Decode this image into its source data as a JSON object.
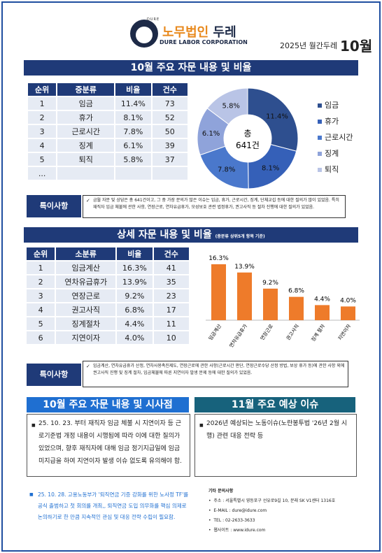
{
  "header": {
    "logo_small": "DURE",
    "logo_kr_1": "노무법인",
    "logo_kr_2": "두레",
    "logo_en": "DURE LABOR CORPORATION",
    "issue": "2025년 월간두레",
    "month": "10월"
  },
  "section1": {
    "title": "10월 주요 자문 내용 및 비율",
    "table": {
      "headers": [
        "순위",
        "중분류",
        "비율",
        "건수"
      ],
      "rows": [
        [
          "1",
          "임금",
          "11.4%",
          "73"
        ],
        [
          "2",
          "휴가",
          "8.1%",
          "52"
        ],
        [
          "3",
          "근로시간",
          "7.8%",
          "50"
        ],
        [
          "4",
          "징계",
          "6.1%",
          "39"
        ],
        [
          "5",
          "퇴직",
          "5.8%",
          "37"
        ],
        [
          "...",
          "",
          "",
          ""
        ]
      ]
    },
    "note_label": "특이사항",
    "note_text": "금월 자문 및 상담은 총 641건이고, 그 중 가장 문의가 많은 이슈는 임금, 휴가, 근로시간, 징계, 단체교섭 등에 대한 질의가 많이 있었음. 특히 재직자 임금 체불에 관한 사항, 연장근로, 연차유급휴가, 모성보호 관련 법정휴가, 권고사직 등 절차 진행에 대한 질의가 있었음."
  },
  "donut": {
    "center_line1": "총",
    "center_line2": "641건",
    "slices": [
      {
        "label": "임금",
        "value": 11.4,
        "text": "11.4%",
        "color": "#2e4f8f"
      },
      {
        "label": "휴가",
        "value": 8.1,
        "text": "8.1%",
        "color": "#3560b8"
      },
      {
        "label": "근로시간",
        "value": 7.8,
        "text": "7.8%",
        "color": "#4a78cc"
      },
      {
        "label": "징계",
        "value": 6.1,
        "text": "6.1%",
        "color": "#8fa3da"
      },
      {
        "label": "퇴직",
        "value": 5.8,
        "text": "5.8%",
        "color": "#b9c4e6"
      }
    ]
  },
  "section2": {
    "title": "상세 자문 내용 및 비율",
    "title_sub": "(중분류 상위5개 항목 기준)",
    "table": {
      "headers": [
        "순위",
        "소분류",
        "비율",
        "건수"
      ],
      "rows": [
        [
          "1",
          "임금계산",
          "16.3%",
          "41"
        ],
        [
          "2",
          "연차유급휴가",
          "13.9%",
          "35"
        ],
        [
          "3",
          "연장근로",
          "9.2%",
          "23"
        ],
        [
          "4",
          "권고사직",
          "6.8%",
          "17"
        ],
        [
          "5",
          "징계절차",
          "4.4%",
          "11"
        ],
        [
          "6",
          "지연이자",
          "4.0%",
          "10"
        ]
      ]
    },
    "note_label": "특이사항",
    "note_text": "임금계산, 연차유급휴가 산정, 연차사용촉진제도, 연장근로에 관한 사항(근로시간 판단, 연장근로수당 산정 방법, 보상 휴가 등)에 관한 사항 외에 권고사직 진행 및 징계 절차, 임금체불에 따른 지연이자 발생 문제 등에 대한 질의가 있었음."
  },
  "chart_data": {
    "type": "bar",
    "categories": [
      "임금계산",
      "연차유급휴가",
      "연장근로",
      "권고사직",
      "징계 절차",
      "지연이자"
    ],
    "values": [
      16.3,
      13.9,
      9.2,
      6.8,
      4.4,
      4.0
    ],
    "labels": [
      "16.3%",
      "13.9%",
      "9.2%",
      "6.8%",
      "4.4%",
      "4.0%"
    ],
    "color": "#ee7b2a",
    "ylim": [
      0,
      16.3
    ]
  },
  "section3": {
    "title": "10월 주요 자문 내용 및 시사점",
    "bullet": "■",
    "text": "25. 10. 23. 부터 재직자 임금 체불 시 지연이자 등 근로기준법 개정 내용이 시행됨에 따라 이에 대한 질의가 있었으며, 향후 재직자에 대해 임금 정기지급일에 임금 미지급을 하여 지연이자 발생 이슈 없도록 유의해야 함."
  },
  "section4": {
    "title": "11월 주요 예상 이슈",
    "bullet": "■",
    "text": "2026년 예상되는 노동이슈(노란봉투법 '26년 2월 시행) 관련 대응 전략 등"
  },
  "bottom_note": {
    "bullet": "■",
    "text": "25. 10. 28. 고용노동부가 '퇴직연금 기증 강화를 위한 노사정 TF'를 공식 출범하고 첫 회의를 개최,, 퇴직연금 도입 의무화를 핵심 의제로 논의하기로 한 만큼 지속적인 관심 및 대응 전략 수립이 필요함."
  },
  "contact": {
    "title": "기타 문의사항",
    "items": [
      "주소 : 서울특별시 영등포구 선유로9길 10, 문래 SK V1센터 1316호",
      "E-MAIL : dure@idure.com",
      "TEL : 02-2633-3633",
      "웹사이트 : www.idure.com"
    ]
  }
}
